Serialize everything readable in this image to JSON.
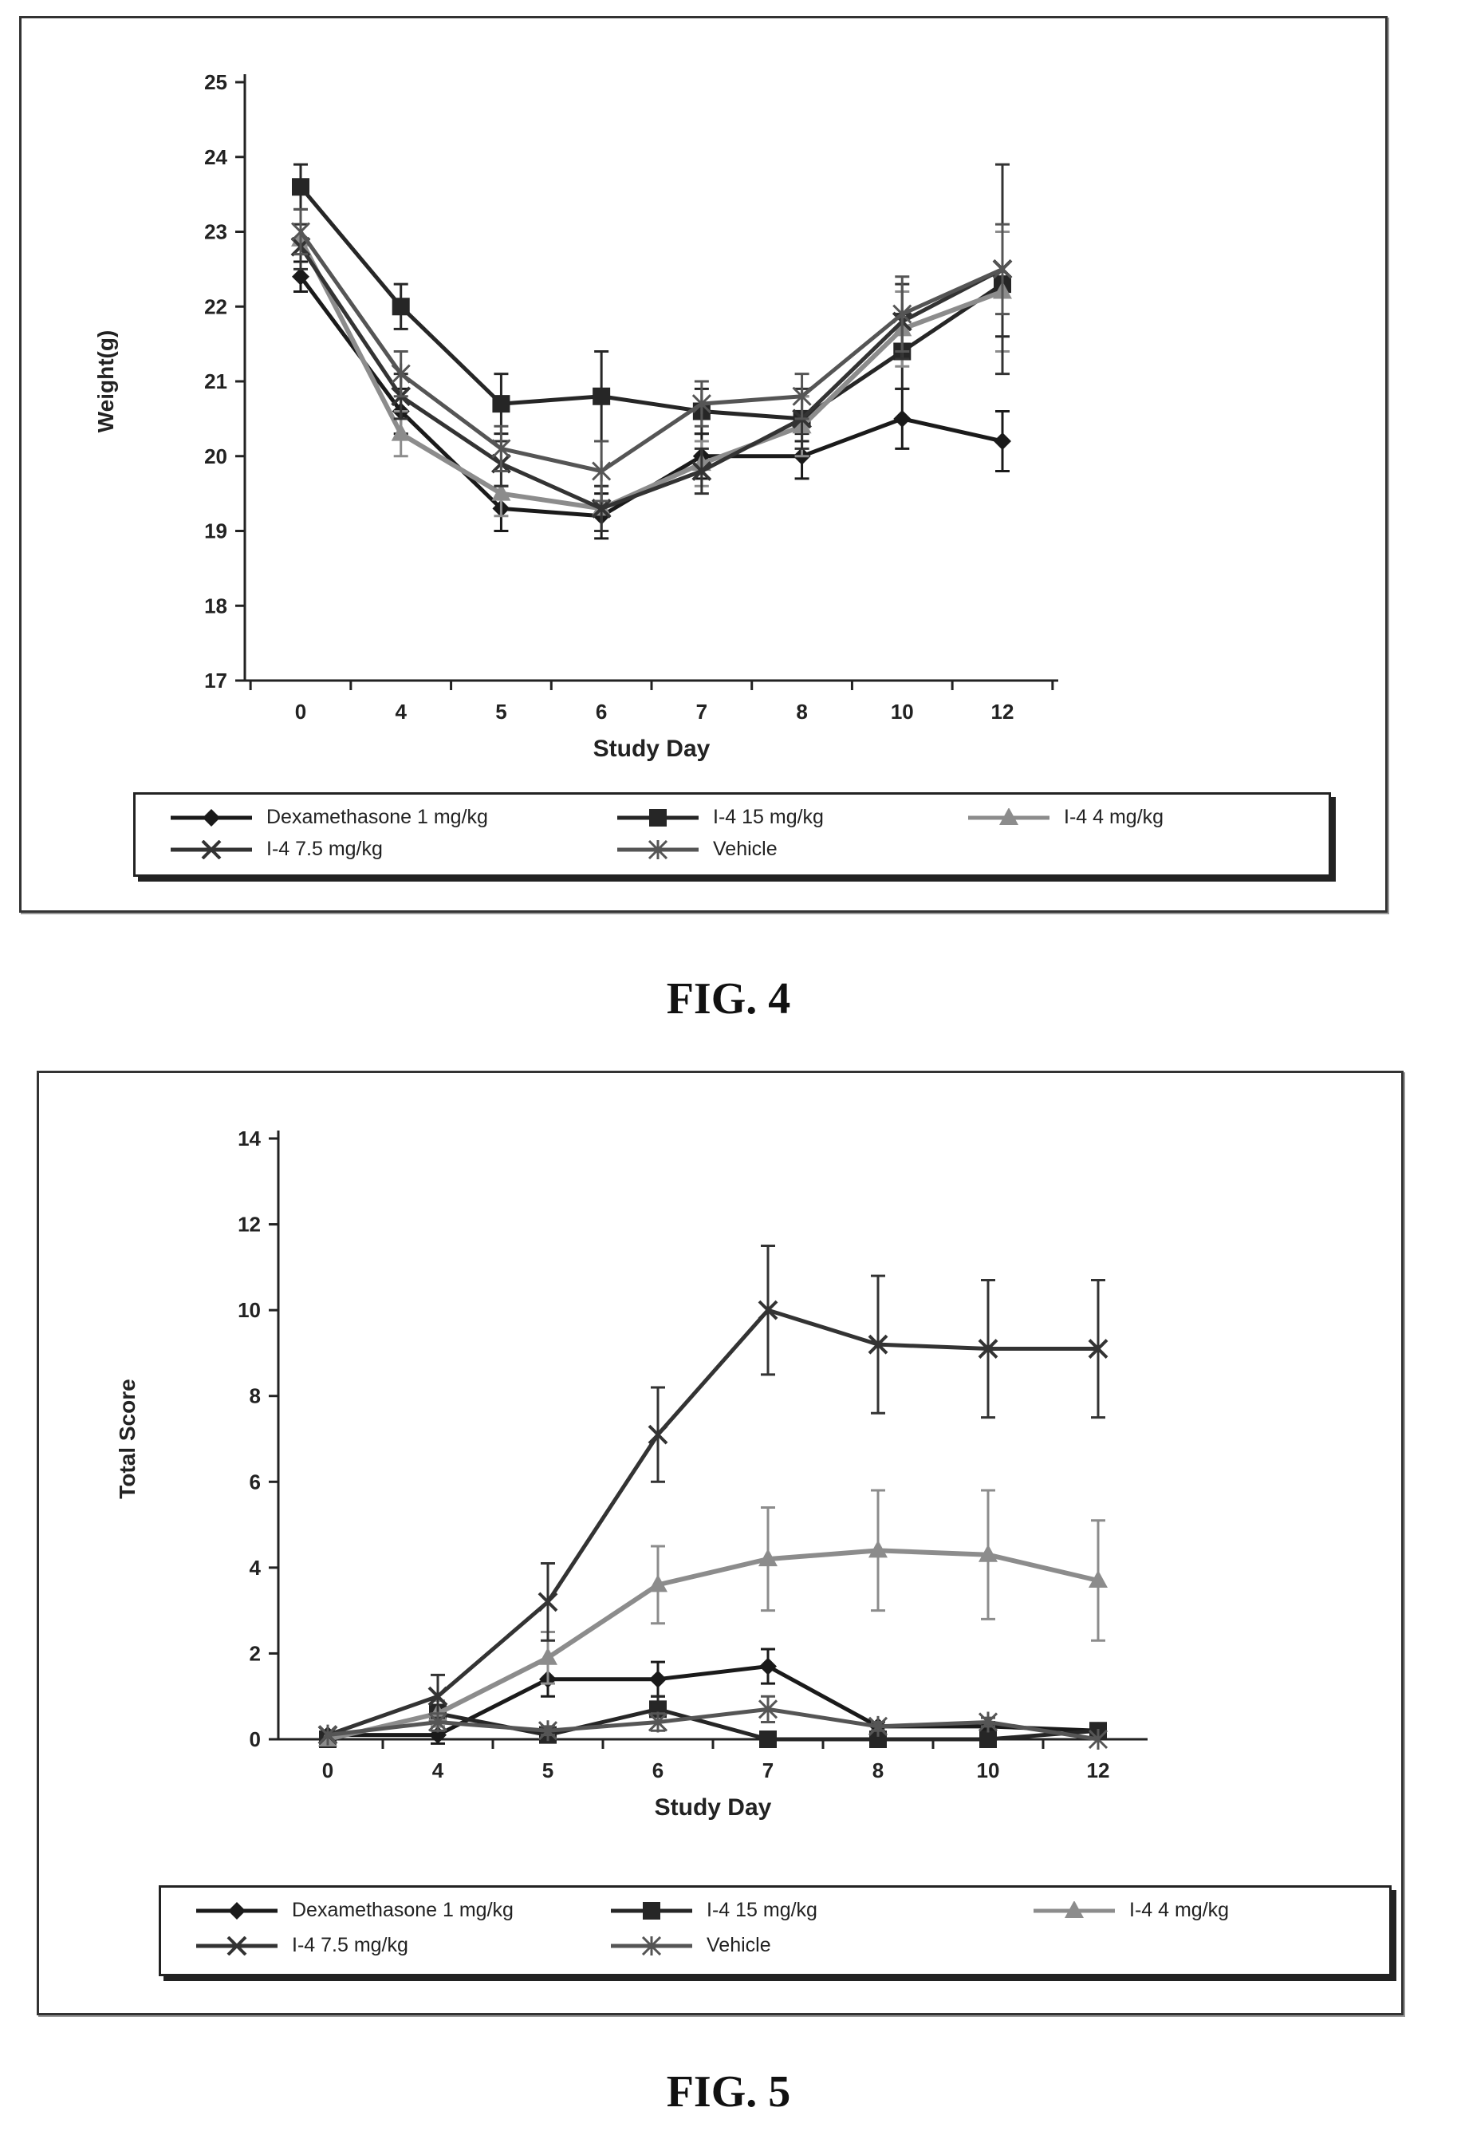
{
  "figures": [
    {
      "caption": "FIG. 4",
      "chart_data": {
        "type": "line",
        "xlabel": "Study Day",
        "ylabel": "Weight(g)",
        "categories": [
          "0",
          "4",
          "5",
          "6",
          "7",
          "8",
          "10",
          "12"
        ],
        "ylim": [
          17,
          25
        ],
        "yticks": [
          17,
          18,
          19,
          20,
          21,
          22,
          23,
          24,
          25
        ],
        "grid": false,
        "legend_position": "bottom",
        "series": [
          {
            "name": "Dexamethasone 1 mg/kg",
            "marker": "diamond",
            "values": [
              22.4,
              20.6,
              19.3,
              19.2,
              20.0,
              20.0,
              20.5,
              20.2
            ],
            "errors": [
              0.2,
              0.3,
              0.3,
              0.3,
              0.3,
              0.3,
              0.4,
              0.4
            ]
          },
          {
            "name": "I-4 15 mg/kg",
            "marker": "square",
            "values": [
              23.6,
              22.0,
              20.7,
              20.8,
              20.6,
              20.5,
              21.4,
              22.3
            ],
            "errors": [
              0.3,
              0.3,
              0.4,
              0.6,
              0.3,
              0.3,
              0.5,
              0.7
            ]
          },
          {
            "name": "I-4 4 mg/kg",
            "marker": "triangle",
            "values": [
              22.9,
              20.3,
              19.5,
              19.3,
              19.9,
              20.4,
              21.7,
              22.2
            ],
            "errors": [
              0.2,
              0.3,
              0.3,
              0.3,
              0.3,
              0.4,
              0.5,
              0.8
            ]
          },
          {
            "name": "I-4 7.5 mg/kg",
            "marker": "x",
            "values": [
              22.8,
              20.8,
              19.9,
              19.3,
              19.8,
              20.5,
              21.8,
              22.5
            ],
            "errors": [
              0.3,
              0.3,
              0.3,
              0.3,
              0.3,
              0.4,
              0.5,
              1.4
            ]
          },
          {
            "name": "Vehicle",
            "marker": "star",
            "values": [
              23.0,
              21.1,
              20.1,
              19.8,
              20.7,
              20.8,
              21.9,
              22.5
            ],
            "errors": [
              0.3,
              0.3,
              0.3,
              0.4,
              0.3,
              0.3,
              0.5,
              0.6
            ]
          }
        ]
      }
    },
    {
      "caption": "FIG. 5",
      "chart_data": {
        "type": "line",
        "xlabel": "Study Day",
        "ylabel": "Total Score",
        "categories": [
          "0",
          "4",
          "5",
          "6",
          "7",
          "8",
          "10",
          "12"
        ],
        "ylim": [
          0,
          14
        ],
        "yticks": [
          0,
          2,
          4,
          6,
          8,
          10,
          12,
          14
        ],
        "grid": false,
        "legend_position": "bottom",
        "series": [
          {
            "name": "Dexamethasone 1 mg/kg",
            "marker": "diamond",
            "values": [
              0.1,
              0.1,
              1.4,
              1.4,
              1.7,
              0.3,
              0.3,
              0.2
            ],
            "errors": [
              0.0,
              0.2,
              0.4,
              0.4,
              0.4,
              0.1,
              0.1,
              0.1
            ]
          },
          {
            "name": "I-4 15 mg/kg",
            "marker": "square",
            "values": [
              0.0,
              0.6,
              0.1,
              0.7,
              0.0,
              0.0,
              0.0,
              0.2
            ],
            "errors": [
              0.0,
              0.2,
              0.1,
              0.3,
              0.0,
              0.0,
              0.0,
              0.1
            ]
          },
          {
            "name": "I-4 4 mg/kg",
            "marker": "triangle",
            "values": [
              0.0,
              0.6,
              1.9,
              3.6,
              4.2,
              4.4,
              4.3,
              3.7
            ],
            "errors": [
              0.0,
              0.3,
              0.6,
              0.9,
              1.2,
              1.4,
              1.5,
              1.4
            ]
          },
          {
            "name": "I-4 7.5 mg/kg",
            "marker": "x",
            "values": [
              0.1,
              1.0,
              3.2,
              7.1,
              10.0,
              9.2,
              9.1,
              9.1
            ],
            "errors": [
              0.0,
              0.5,
              0.9,
              1.1,
              1.5,
              1.6,
              1.6,
              1.6
            ]
          },
          {
            "name": "Vehicle",
            "marker": "star",
            "values": [
              0.1,
              0.4,
              0.2,
              0.4,
              0.7,
              0.3,
              0.4,
              0.0
            ],
            "errors": [
              0.0,
              0.2,
              0.1,
              0.2,
              0.3,
              0.1,
              0.1,
              0.0
            ]
          }
        ]
      }
    }
  ],
  "colors": {
    "Dexamethasone 1 mg/kg": "#1a1a1a",
    "I-4 15 mg/kg": "#262626",
    "I-4 4 mg/kg": "#8c8c8c",
    "I-4 7.5 mg/kg": "#333333",
    "Vehicle": "#555555"
  }
}
